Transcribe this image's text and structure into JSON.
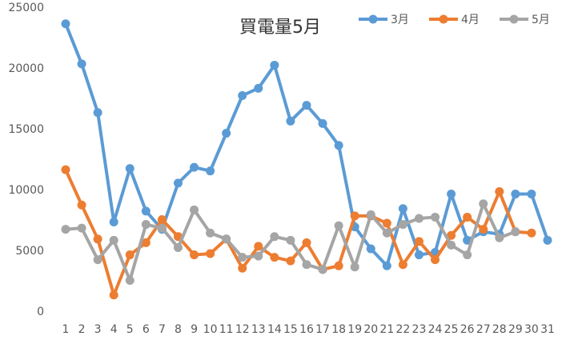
{
  "chart_data": {
    "type": "line",
    "title": "買電量5月",
    "categories": [
      1,
      2,
      3,
      4,
      5,
      6,
      7,
      8,
      9,
      10,
      11,
      12,
      13,
      14,
      15,
      16,
      17,
      18,
      19,
      20,
      21,
      22,
      23,
      24,
      25,
      26,
      27,
      28,
      29,
      30,
      31
    ],
    "series": [
      {
        "name": "3月",
        "color": "#5b9bd5",
        "values": [
          23700,
          20400,
          16400,
          7400,
          11800,
          8300,
          6800,
          10600,
          11900,
          11600,
          14700,
          17800,
          18400,
          20300,
          15700,
          17000,
          15500,
          13700,
          7000,
          5200,
          3800,
          8500,
          4700,
          4900,
          9700,
          5900,
          6600,
          6400,
          9700,
          9700,
          5900
        ]
      },
      {
        "name": "4月",
        "color": "#ed7d31",
        "values": [
          11700,
          8800,
          6000,
          1400,
          4700,
          5700,
          7600,
          6200,
          4700,
          4800,
          6000,
          3600,
          5400,
          4500,
          4200,
          5700,
          3500,
          3800,
          7900,
          7900,
          7300,
          3900,
          5800,
          4300,
          6300,
          7800,
          6800,
          9900,
          6600,
          6500,
          null
        ]
      },
      {
        "name": "5月",
        "color": "#a5a5a5",
        "values": [
          6800,
          6900,
          4300,
          5900,
          2600,
          7200,
          6900,
          5300,
          8400,
          6500,
          6000,
          4500,
          4600,
          6200,
          5900,
          3900,
          3500,
          7100,
          3700,
          8000,
          6500,
          7200,
          7700,
          7800,
          5500,
          4700,
          8900,
          6100,
          6600,
          null,
          null
        ]
      }
    ],
    "ylim": [
      0,
      25000
    ],
    "yticks": [
      0,
      5000,
      10000,
      15000,
      20000,
      25000
    ],
    "grid": false,
    "legend": "top-right"
  }
}
